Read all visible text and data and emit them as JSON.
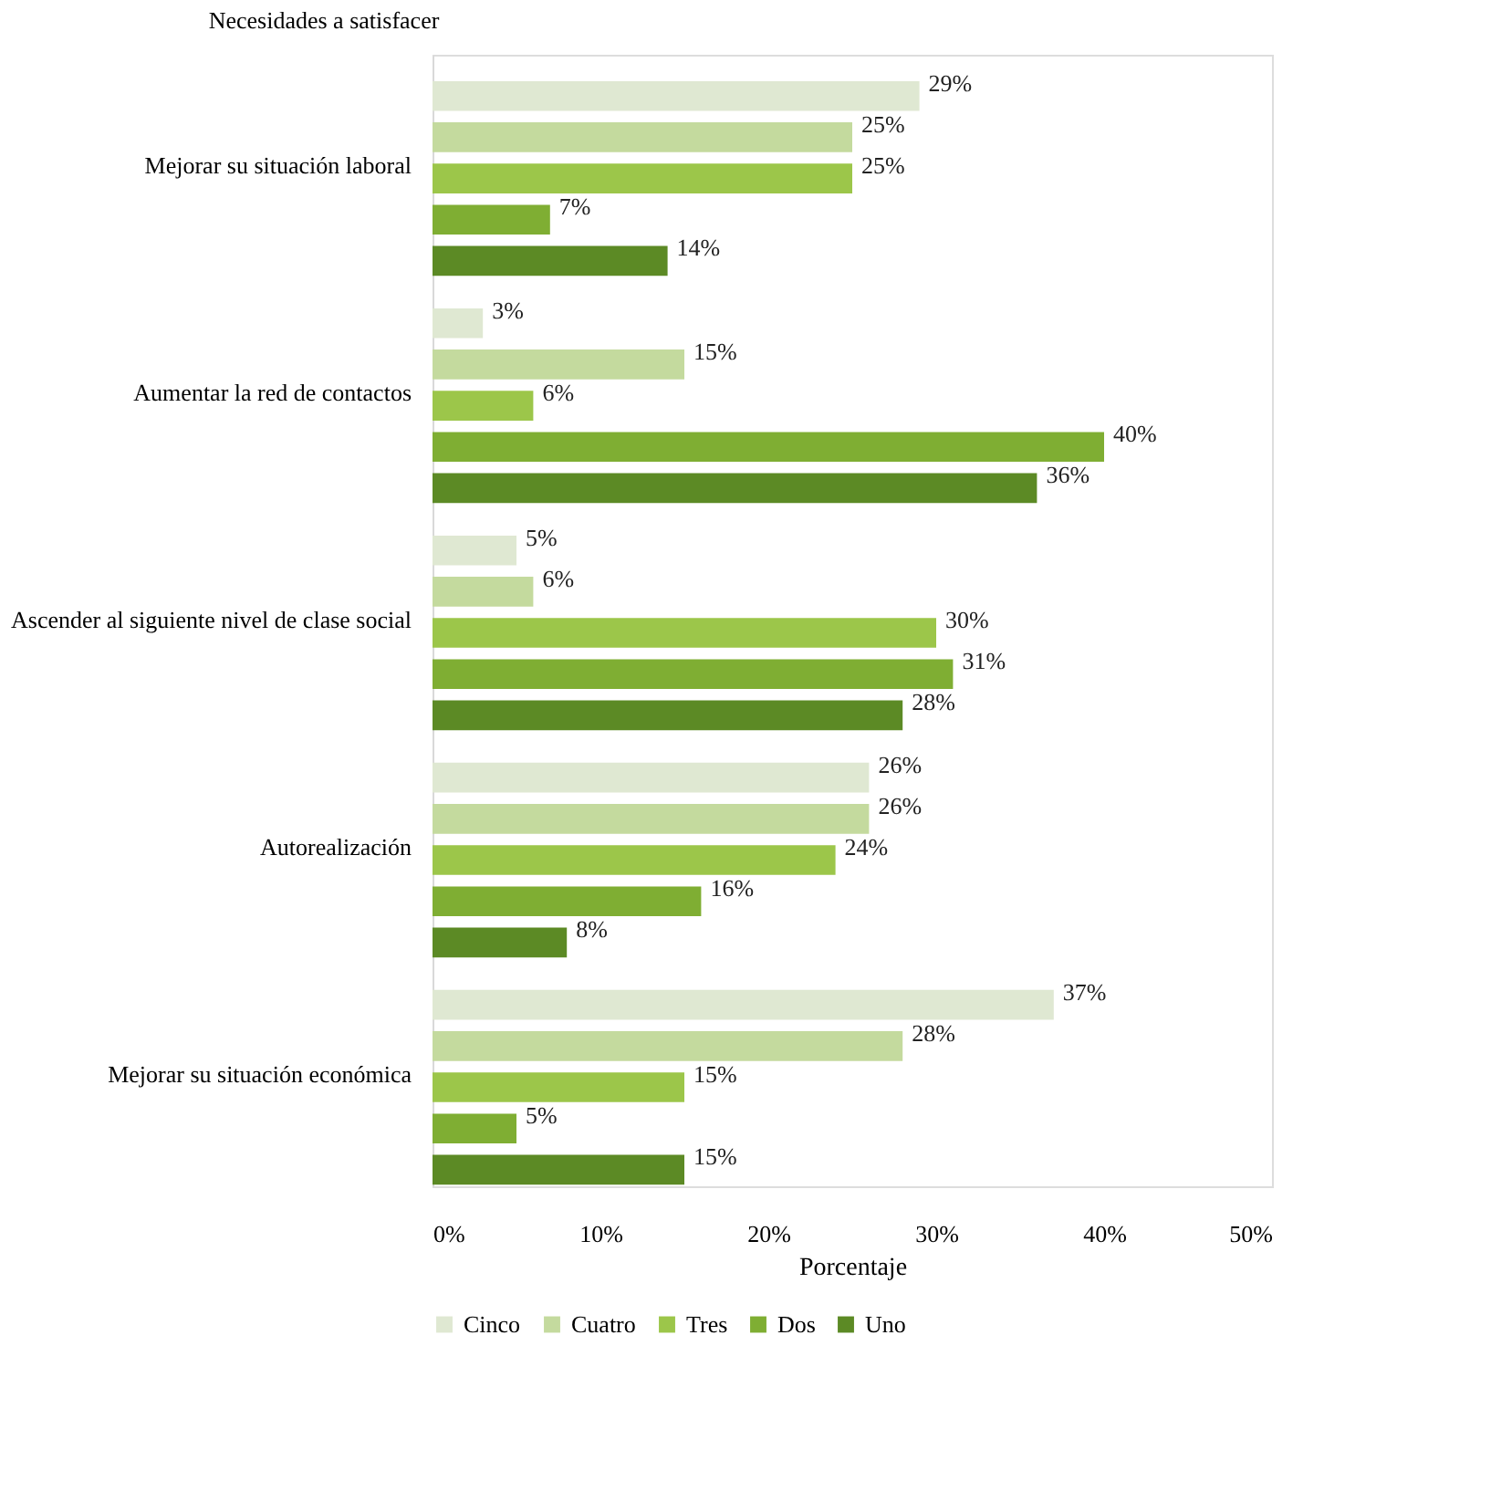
{
  "chart_data": {
    "type": "bar",
    "orientation": "horizontal",
    "ylabel": "Necesidades a satisfacer",
    "xlabel": "Porcentaje",
    "categories": [
      "Mejorar su situación laboral",
      "Aumentar la red de contactos",
      "Ascender al siguiente nivel de clase social",
      "Autorealización",
      "Mejorar su situación económica"
    ],
    "series": [
      {
        "name": "Cinco",
        "color": "#dfe8d2",
        "values": [
          29,
          3,
          5,
          26,
          37
        ],
        "value_labels": [
          "29%",
          "3%",
          "5%",
          "26%",
          "37%"
        ]
      },
      {
        "name": "Cuatro",
        "color": "#c4da9e",
        "values": [
          25,
          15,
          6,
          26,
          28
        ],
        "value_labels": [
          "25%",
          "15%",
          "6%",
          "26%",
          "28%"
        ]
      },
      {
        "name": "Tres",
        "color": "#9cc64a",
        "values": [
          25,
          6,
          30,
          24,
          15
        ],
        "value_labels": [
          "25%",
          "6%",
          "30%",
          "24%",
          "15%"
        ]
      },
      {
        "name": "Dos",
        "color": "#7fae33",
        "values": [
          7,
          40,
          31,
          16,
          5
        ],
        "value_labels": [
          "7%",
          "40%",
          "31%",
          "16%",
          "5%"
        ]
      },
      {
        "name": "Uno",
        "color": "#5c8a25",
        "values": [
          14,
          36,
          28,
          8,
          15
        ],
        "value_labels": [
          "14%",
          "36%",
          "28%",
          "8%",
          "15%"
        ]
      }
    ],
    "xlim": [
      0,
      50
    ],
    "xticks": [
      {
        "value": 0,
        "label": "0%"
      },
      {
        "value": 10,
        "label": "10%"
      },
      {
        "value": 20,
        "label": "20%"
      },
      {
        "value": 30,
        "label": "30%"
      },
      {
        "value": 40,
        "label": "40%"
      },
      {
        "value": 50,
        "label": "50%"
      }
    ],
    "grid": false,
    "legend": "bottom"
  }
}
